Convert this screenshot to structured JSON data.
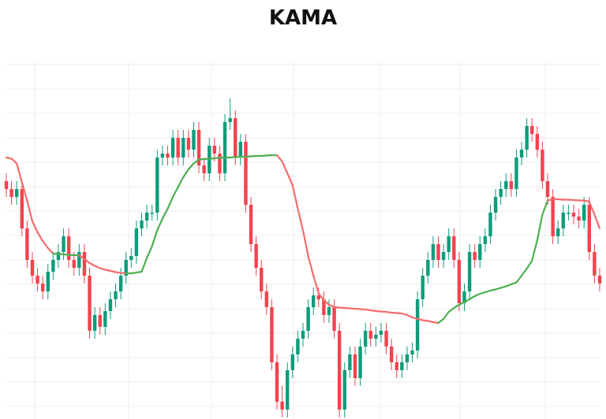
{
  "chart_data": {
    "type": "candlestick",
    "title": "KAMA",
    "xlabel": "",
    "ylabel": "",
    "ylim": [
      13.6,
      104
    ],
    "grid": true,
    "legend": "none",
    "colors": {
      "up": "#0e9c7c",
      "down": "#f2434f",
      "kama_up": "#4caf50",
      "kama_down": "#f76b6b",
      "grid": "#eeeeee"
    },
    "open": [
      74,
      72,
      70,
      72,
      62,
      54,
      50,
      48,
      46,
      51,
      54,
      56,
      60,
      54,
      52,
      56,
      50,
      36,
      40,
      37,
      41,
      44,
      46,
      50,
      54,
      55,
      62,
      64,
      66,
      66,
      80,
      81,
      80,
      85,
      80,
      85,
      82,
      87,
      78,
      76,
      83,
      81,
      76,
      89,
      90,
      80,
      84,
      68,
      58,
      52,
      46,
      42,
      28,
      18,
      16,
      26,
      30,
      34,
      36,
      42,
      45,
      44,
      40,
      42,
      36,
      16,
      26,
      30,
      24,
      32,
      36,
      34,
      35,
      36,
      32,
      28,
      26,
      28,
      30,
      31,
      44,
      50,
      54,
      58,
      54,
      56,
      60,
      54,
      43,
      46,
      56,
      54,
      58,
      60,
      66,
      70,
      72,
      74,
      72,
      80,
      82,
      88,
      86,
      82,
      74,
      70,
      60,
      62,
      66,
      66,
      65,
      64,
      68,
      56,
      50
    ],
    "high": [
      76,
      74,
      74,
      74,
      64,
      56,
      52,
      50,
      53,
      56,
      58,
      62,
      62,
      56,
      58,
      58,
      52,
      42,
      42,
      43,
      46,
      48,
      52,
      56,
      57,
      64,
      66,
      68,
      68,
      82,
      83,
      83,
      87,
      87,
      87,
      87,
      89,
      89,
      80,
      85,
      85,
      83,
      91,
      95,
      92,
      86,
      86,
      70,
      60,
      54,
      48,
      44,
      30,
      22,
      28,
      32,
      36,
      38,
      44,
      47,
      47,
      46,
      44,
      44,
      38,
      28,
      32,
      32,
      34,
      38,
      38,
      37,
      38,
      38,
      34,
      30,
      30,
      32,
      33,
      46,
      52,
      56,
      60,
      60,
      58,
      62,
      62,
      56,
      48,
      58,
      58,
      60,
      62,
      68,
      72,
      74,
      76,
      76,
      82,
      84,
      90,
      90,
      88,
      84,
      76,
      72,
      64,
      68,
      68,
      68,
      67,
      70,
      70,
      58,
      52
    ],
    "low": [
      70,
      68,
      68,
      60,
      52,
      48,
      46,
      44,
      44,
      49,
      52,
      54,
      52,
      50,
      50,
      48,
      34,
      34,
      35,
      35,
      39,
      42,
      44,
      48,
      52,
      53,
      60,
      62,
      64,
      64,
      78,
      78,
      78,
      78,
      78,
      80,
      80,
      76,
      74,
      74,
      79,
      74,
      74,
      87,
      78,
      78,
      66,
      56,
      50,
      44,
      40,
      26,
      16,
      14,
      14,
      24,
      28,
      32,
      34,
      40,
      42,
      38,
      38,
      34,
      14,
      14,
      24,
      22,
      22,
      30,
      32,
      32,
      33,
      30,
      26,
      24,
      24,
      26,
      28,
      29,
      42,
      48,
      52,
      52,
      52,
      54,
      52,
      41,
      41,
      44,
      52,
      52,
      56,
      58,
      64,
      68,
      70,
      70,
      70,
      78,
      80,
      84,
      80,
      72,
      68,
      58,
      58,
      60,
      64,
      63,
      62,
      62,
      54,
      48,
      46
    ],
    "close": [
      72,
      70,
      72,
      62,
      54,
      50,
      48,
      46,
      51,
      54,
      56,
      60,
      54,
      52,
      56,
      50,
      36,
      40,
      37,
      41,
      44,
      46,
      50,
      54,
      55,
      62,
      64,
      66,
      66,
      80,
      81,
      80,
      85,
      80,
      85,
      82,
      87,
      78,
      76,
      83,
      81,
      76,
      89,
      90,
      80,
      84,
      68,
      58,
      52,
      46,
      42,
      28,
      18,
      16,
      26,
      30,
      34,
      36,
      42,
      45,
      44,
      40,
      42,
      36,
      16,
      26,
      30,
      24,
      32,
      36,
      34,
      35,
      36,
      32,
      28,
      26,
      28,
      30,
      31,
      44,
      50,
      54,
      58,
      54,
      56,
      60,
      54,
      43,
      46,
      56,
      54,
      58,
      60,
      66,
      70,
      72,
      74,
      72,
      80,
      82,
      88,
      86,
      82,
      74,
      70,
      60,
      62,
      66,
      66,
      65,
      64,
      68,
      56,
      50,
      48
    ],
    "kama": [
      80,
      79.7,
      78.5,
      73.7,
      69,
      63.8,
      61,
      58.8,
      57,
      55.6,
      55.5,
      55.4,
      55.3,
      55.2,
      55.2,
      54.2,
      53.2,
      52.5,
      51.9,
      51.5,
      51.2,
      50.9,
      50.7,
      50.6,
      50.6,
      50.8,
      51,
      54.5,
      57.5,
      61.5,
      64.5,
      67,
      70,
      72.5,
      75,
      77,
      78.5,
      79.5,
      79.6,
      79.7,
      79.8,
      79.9,
      80,
      80,
      80.1,
      80.2,
      80.2,
      80.3,
      80.4,
      80.4,
      80.5,
      80.6,
      80.6,
      79,
      76,
      73,
      67,
      61.5,
      55,
      50,
      45.5,
      43.8,
      42.6,
      42,
      41.9,
      41.8,
      41.7,
      41.6,
      41.5,
      41.4,
      41.2,
      41,
      40.9,
      40.8,
      40.6,
      40.5,
      40.4,
      40,
      39.4,
      39,
      38.7,
      38.5,
      38.2,
      38,
      39,
      40.8,
      41.8,
      42.6,
      43.3,
      44,
      44.8,
      45.4,
      45.8,
      46.2,
      46.5,
      46.9,
      47.3,
      47.8,
      48.3,
      50,
      51.8,
      53.8,
      59,
      65.5,
      69.1,
      69.4,
      69.4,
      69.3,
      69.3,
      69.2,
      69.1,
      69.1,
      68.8,
      65.5,
      62
    ],
    "kama_up_ranges": [
      [
        9,
        14
      ],
      [
        23,
        52
      ],
      [
        83,
        104
      ]
    ]
  }
}
